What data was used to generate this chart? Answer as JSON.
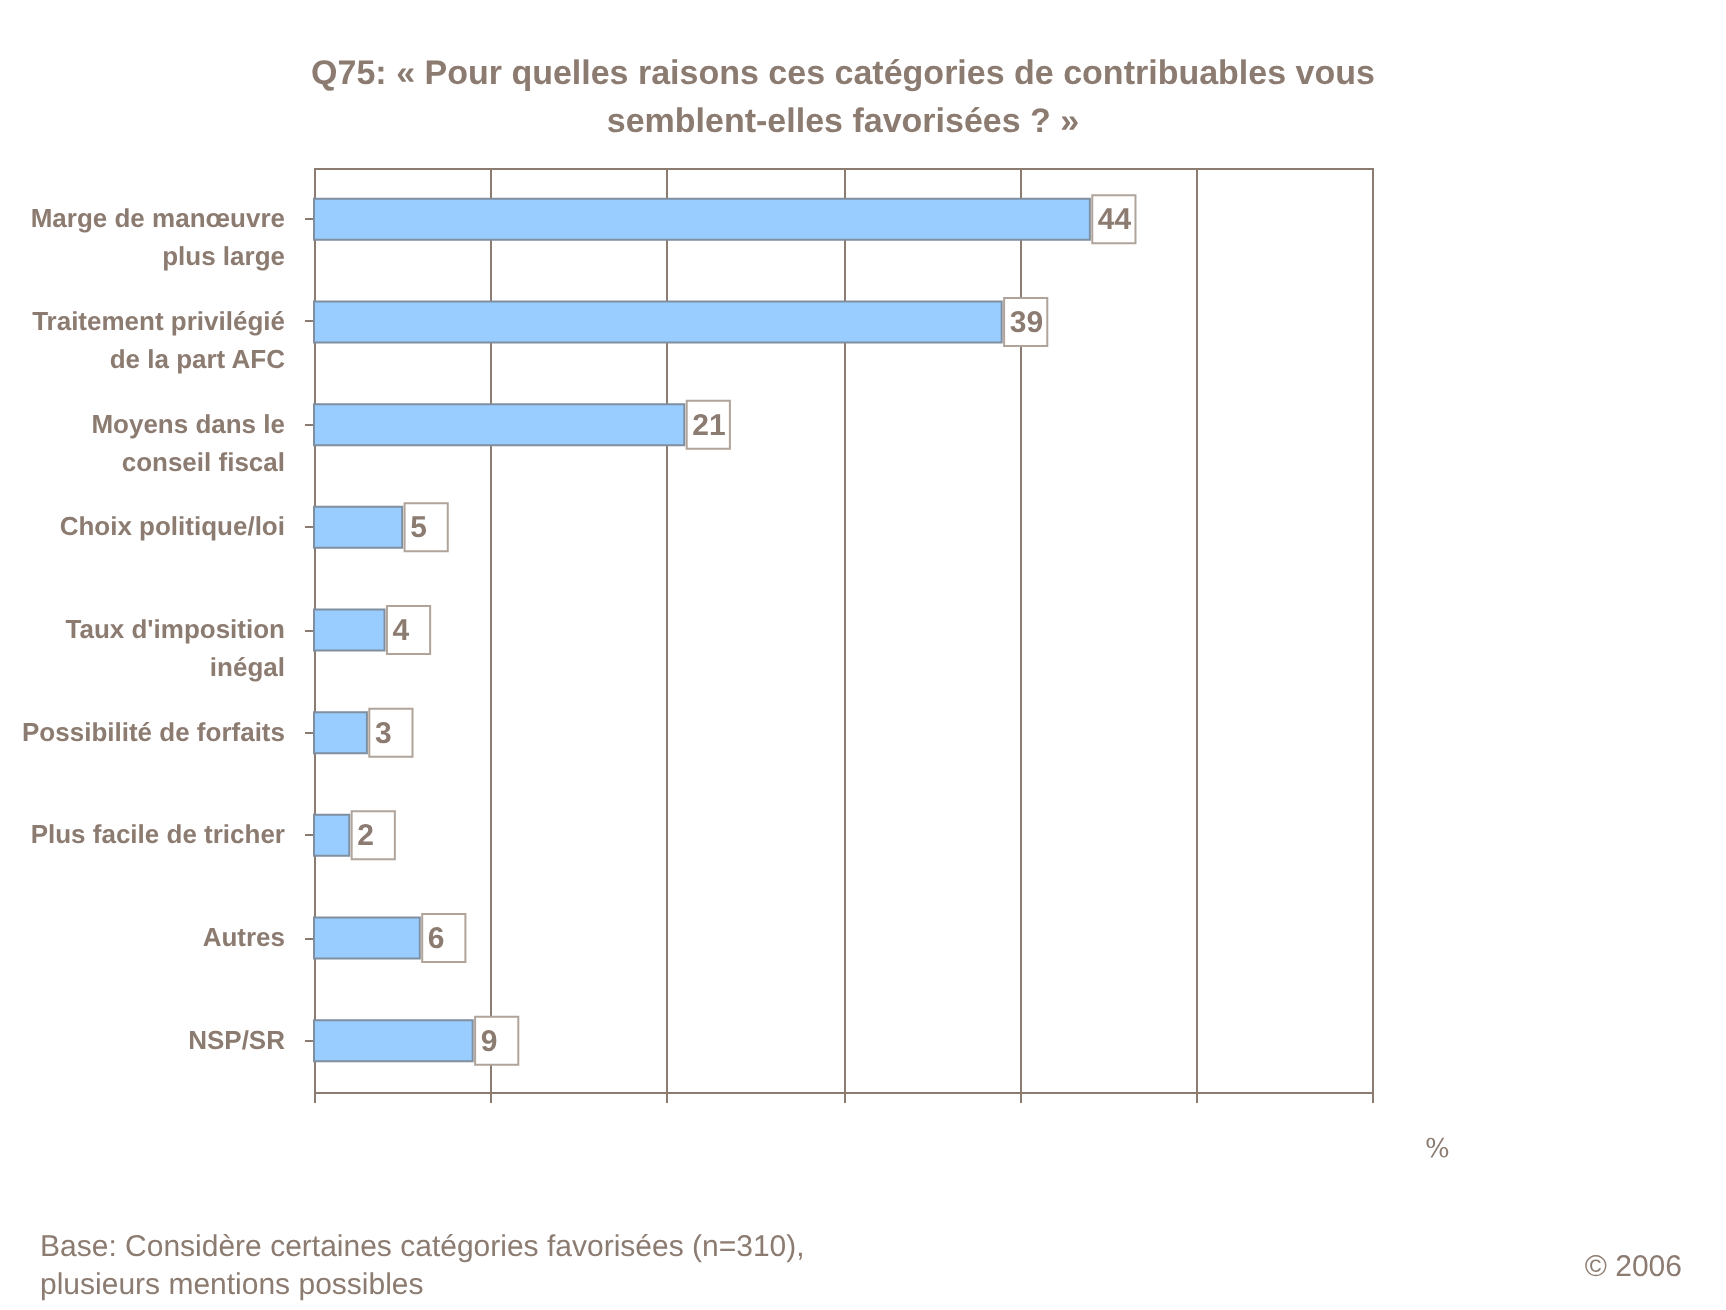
{
  "chart_data": {
    "type": "bar",
    "orientation": "horizontal",
    "title": "Q75: « Pour quelles raisons ces catégories de contribuables vous\nsemblent-elles favorisées ? »",
    "categories": [
      "Marge de manœuvre\nplus large",
      "Traitement privilégié\nde la part AFC",
      "Moyens dans le\nconseil fiscal",
      "Choix politique/loi",
      "Taux d'imposition\ninégal",
      "Possibilité de forfaits",
      "Plus facile de tricher",
      "Autres",
      "NSP/SR"
    ],
    "values": [
      44,
      39,
      21,
      5,
      4,
      3,
      2,
      6,
      9
    ],
    "color": "#99ccff",
    "xlabel": "%",
    "xlim": [
      0,
      60
    ],
    "xticks": [
      {
        "value": 0,
        "label": null
      },
      {
        "value": 10,
        "label": null
      },
      {
        "value": 20,
        "label": null
      },
      {
        "value": 30,
        "label": null
      },
      {
        "value": 40,
        "label": null
      },
      {
        "value": 50,
        "label": null
      },
      {
        "value": 60,
        "label": null
      }
    ],
    "tick_labels": "y",
    "grid": "x",
    "data_labels": true,
    "annotations": [
      "Base: Considère certaines catégories favorisées (n=310),\nplusieurs mentions possibles",
      "© 2006"
    ]
  }
}
